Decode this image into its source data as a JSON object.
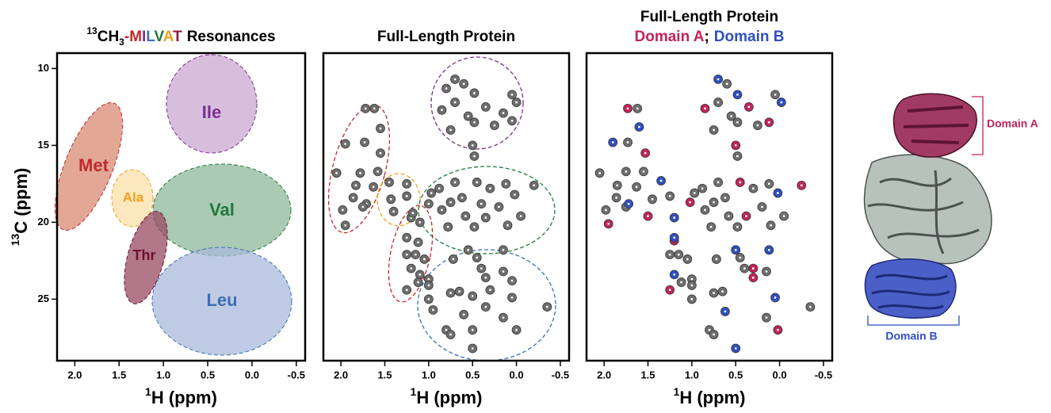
{
  "chart_data": [
    {
      "type": "region",
      "title": {
        "isotope": "13",
        "base": "CH",
        "sub": "3",
        "dash": "-",
        "letters": [
          {
            "text": "M",
            "color": "#c0282d"
          },
          {
            "text": "I",
            "color": "#7b2d8e"
          },
          {
            "text": "L",
            "color": "#3b6fb5"
          },
          {
            "text": "V",
            "color": "#1e7a3c"
          },
          {
            "text": "A",
            "color": "#f0a020"
          },
          {
            "text": "T",
            "color": "#8b1a3a"
          }
        ],
        "rest": "Resonances"
      },
      "x_label": {
        "sup": "1",
        "text": "H (ppm)"
      },
      "y_label": {
        "sup": "13",
        "text": "C (ppm)"
      },
      "xlim": [
        2.2,
        -0.6
      ],
      "ylim": [
        9,
        29
      ],
      "xticks": [
        {
          "value": 2,
          "label": "2.0"
        },
        1.5,
        {
          "value": 1,
          "label": "1.0"
        },
        0.5,
        {
          "value": 0,
          "label": "0.0"
        },
        -0.5
      ],
      "yticks": [
        10,
        15,
        20,
        25
      ],
      "regions": [
        {
          "name": "Met",
          "color": "#c0282d",
          "fill": "#d98a73"
        },
        {
          "name": "Ala",
          "color": "#f0a020",
          "fill": "#fbe0a8"
        },
        {
          "name": "Ile",
          "color": "#7b2d8e",
          "fill": "#c9a8d2"
        },
        {
          "name": "Val",
          "color": "#1e7a3c",
          "fill": "#8fb89a"
        },
        {
          "name": "Leu",
          "color": "#3b6fb5",
          "fill": "#a9badb"
        },
        {
          "name": "Thr",
          "color": "#6b1030",
          "fill": "#9a4a63"
        }
      ]
    },
    {
      "type": "scatter",
      "title": "Full-Length Protein",
      "x_label": {
        "sup": "1",
        "text": "H (ppm)"
      },
      "xlim": [
        2.2,
        -0.6
      ],
      "ylim": [
        9,
        29
      ],
      "xticks": [
        {
          "value": 2,
          "label": "2.0"
        },
        1.5,
        {
          "value": 1,
          "label": "1.0"
        },
        0.5,
        {
          "value": 0,
          "label": "0.0"
        },
        -0.5
      ],
      "series": [
        {
          "color": "#6e6e6e",
          "x": [
            1.72,
            1.62,
            1.55,
            1.95,
            1.73,
            1.55,
            2.05,
            1.78,
            1.58,
            1.83,
            1.63,
            1.86,
            1.71,
            1.98,
            1.75,
            1.95,
            1.45,
            1.25,
            1.43,
            1.25,
            1.4,
            1.2,
            1.1,
            1.25,
            1.12,
            1.25,
            1.15,
            1.05,
            1.2,
            1.1,
            1.12,
            1.25,
            0.7,
            0.6,
            0.8,
            0.48,
            0.05,
            0.7,
            0.35,
            0.0,
            0.15,
            0.85,
            0.55,
            0.48,
            0.25,
            0.05,
            0.5,
            0.48,
            0.75,
            0.7,
            0.45,
            0.12,
            -0.2,
            0.88,
            0.3,
            0.97,
            0.02,
            0.62,
            0.75,
            1.0,
            0.4,
            0.2,
            0.85,
            0.58,
            0.35,
            -0.05,
            0.78,
            0.48,
            0.1,
            1.18,
            0.55,
            0.45,
            0.15,
            0.72,
            0.4,
            0.35,
            0.15,
            1.0,
            0.05,
            0.3,
            1.0,
            0.75,
            0.65,
            0.5,
            0.05,
            1.0,
            0.95,
            0.6,
            0.35,
            -0.35,
            0.15,
            0.8,
            0.75,
            0.5,
            0.0,
            0.5
          ],
          "y": [
            12.6,
            12.6,
            13.9,
            14.9,
            14.8,
            15.5,
            16.8,
            16.8,
            16.7,
            17.6,
            17.7,
            18.4,
            18.8,
            19.2,
            19.0,
            20.2,
            17.4,
            17.5,
            18.5,
            18.3,
            19.3,
            19.7,
            20.0,
            21.0,
            21.3,
            22.1,
            22.1,
            22.4,
            23.0,
            23.4,
            23.9,
            24.4,
            10.7,
            11.0,
            11.3,
            11.6,
            11.7,
            12.2,
            12.5,
            12.2,
            12.9,
            12.7,
            13.1,
            13.5,
            13.7,
            13.4,
            15.0,
            15.7,
            14.0,
            17.4,
            17.4,
            17.5,
            17.6,
            17.8,
            17.8,
            18.1,
            18.2,
            18.4,
            18.7,
            18.8,
            18.8,
            19.0,
            19.2,
            19.6,
            19.7,
            19.6,
            20.3,
            20.3,
            20.2,
            19.4,
            21.8,
            22.3,
            21.8,
            22.4,
            23.0,
            23.6,
            23.2,
            23.7,
            23.8,
            24.4,
            24.1,
            24.6,
            24.5,
            24.8,
            24.9,
            25.0,
            25.7,
            26.0,
            25.5,
            25.5,
            26.2,
            27.0,
            27.3,
            27.0,
            27.0,
            28.2
          ]
        }
      ]
    },
    {
      "type": "scatter",
      "title": "Full-Length Protein",
      "legend_separator": ";",
      "x_label": {
        "sup": "1",
        "text": "H (ppm)"
      },
      "xlim": [
        2.2,
        -0.6
      ],
      "ylim": [
        9,
        29
      ],
      "xticks": [
        {
          "value": 2,
          "label": "2.0"
        },
        1.5,
        {
          "value": 1,
          "label": "1.0"
        },
        0.5,
        {
          "value": 0,
          "label": "0.0"
        },
        -0.5
      ],
      "series": [
        {
          "color": "#6e6e6e",
          "x": [
            1.62,
            1.73,
            2.05,
            1.75,
            1.55,
            1.85,
            1.63,
            1.86,
            1.98,
            1.75,
            1.45,
            1.25,
            1.25,
            1.15,
            1.05,
            1.12,
            1.0,
            1.0,
            0.6,
            0.05,
            0.7,
            0.55,
            0.48,
            0.25,
            0.48,
            0.75,
            0.7,
            0.12,
            0.88,
            0.3,
            0.97,
            0.62,
            0.75,
            0.2,
            0.85,
            0.58,
            -0.05,
            0.78,
            0.48,
            0.1,
            0.45,
            0.72,
            0.4,
            0.15,
            0.75,
            0.65,
            1.0,
            -0.35,
            0.15,
            0.8,
            0.75
          ],
          "y": [
            12.6,
            14.8,
            16.8,
            16.7,
            16.7,
            17.6,
            17.7,
            18.4,
            19.2,
            19.0,
            18.5,
            18.3,
            22.1,
            22.1,
            22.4,
            23.9,
            23.7,
            24.1,
            11.0,
            11.7,
            12.2,
            13.1,
            13.5,
            13.7,
            15.7,
            14.0,
            17.4,
            17.5,
            17.8,
            17.8,
            18.1,
            18.4,
            18.7,
            19.0,
            19.2,
            19.6,
            19.6,
            20.3,
            20.3,
            20.2,
            22.3,
            22.4,
            23.0,
            23.2,
            24.6,
            24.5,
            25.0,
            25.5,
            26.2,
            27.0,
            27.3
          ]
        },
        {
          "name": "Domain A",
          "color": "#c0245a",
          "x": [
            1.73,
            1.53,
            1.95,
            1.5,
            1.2,
            1.02,
            0.85,
            0.35,
            0.12,
            0.5,
            0.45,
            0.38,
            -0.25,
            0.3,
            0.3,
            1.25,
            0.02
          ],
          "y": [
            12.6,
            15.5,
            20.1,
            19.6,
            21.2,
            18.7,
            12.6,
            12.5,
            13.5,
            15.0,
            17.4,
            19.6,
            17.6,
            23.0,
            23.6,
            24.4,
            27.0
          ]
        },
        {
          "name": "Domain B",
          "color": "#2f4fbf",
          "x": [
            0.7,
            0.48,
            -0.02,
            1.6,
            1.9,
            1.35,
            1.72,
            1.2,
            0.02,
            1.2,
            0.5,
            0.12,
            1.2,
            0.05,
            0.62,
            0.5
          ],
          "y": [
            10.7,
            11.7,
            12.2,
            13.8,
            14.8,
            17.3,
            18.8,
            19.7,
            18.1,
            21.0,
            21.8,
            21.8,
            23.4,
            24.9,
            25.8,
            28.2
          ]
        }
      ]
    }
  ],
  "structure": {
    "domain_a_label": "Domain A",
    "domain_b_label": "Domain B"
  }
}
